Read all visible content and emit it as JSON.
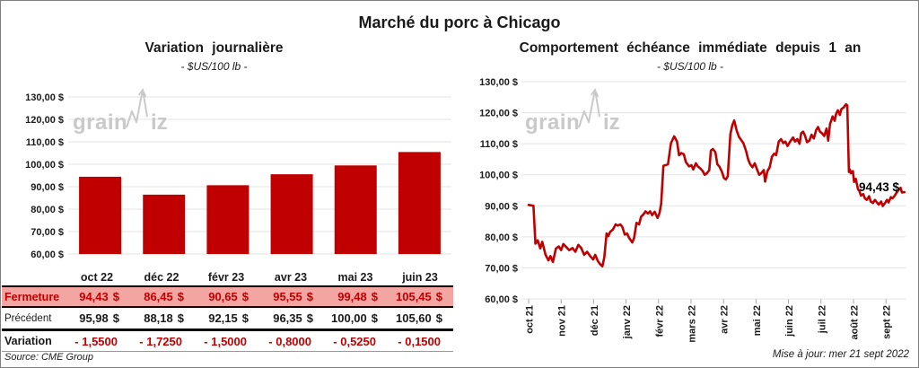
{
  "header": {
    "title": "Marché du porc à Chicago"
  },
  "watermark": {
    "left": "grain",
    "right": "iz"
  },
  "footer": {
    "source": "Source: CME Group",
    "updated": "Mise à jour: mer 21 sept 2022"
  },
  "colors": {
    "accent_red": "#C00000",
    "highlight_pink": "#F3A5A2",
    "gridline_gray": "#E3E3E3",
    "watermark_gray": "#C9C9C9"
  },
  "table": {
    "currency": "$",
    "rows": {
      "fermeture": {
        "label": "Fermeture",
        "values": [
          "94,43",
          "86,45",
          "90,65",
          "95,55",
          "99,48",
          "105,45"
        ]
      },
      "precedent": {
        "label": "Précédent",
        "values": [
          "95,98",
          "88,18",
          "92,15",
          "96,35",
          "100,00",
          "105,60"
        ]
      },
      "variation": {
        "label": "Variation",
        "values": [
          "- 1,5500",
          "- 1,7250",
          "- 1,5000",
          "- 0,8000",
          "- 0,5250",
          "- 0,1500"
        ]
      }
    }
  },
  "chart_data": [
    {
      "type": "bar",
      "title": "Variation journalière",
      "subtitle": "- $US/100 lb -",
      "categories": [
        "oct 22",
        "déc 22",
        "févr 23",
        "avr 23",
        "mai 23",
        "juin 23"
      ],
      "values": [
        94.43,
        86.45,
        90.65,
        95.55,
        99.48,
        105.45
      ],
      "ylim": [
        60,
        130
      ],
      "ytick_step": 10,
      "ytick_labels": [
        "130,00 $",
        "120,00 $",
        "110,00 $",
        "100,00 $",
        "90,00 $",
        "80,00 $",
        "70,00 $",
        "60,00 $"
      ],
      "grid": true,
      "legend": "none",
      "bar_color": "#C00000"
    },
    {
      "type": "line",
      "title": "Comportement échéance immédiate depuis 1 an",
      "subtitle": "- $US/100 lb -",
      "x_tick_labels": [
        "oct 21",
        "nov 21",
        "déc 21",
        "janv 22",
        "févr 22",
        "mars 22",
        "avr 22",
        "mai 22",
        "juin 22",
        "juil 22",
        "août 22",
        "sept 22"
      ],
      "ylim": [
        60,
        130
      ],
      "ytick_step": 10,
      "ytick_labels": [
        "130,00 $",
        "120,00 $",
        "110,00 $",
        "100,00 $",
        "90,00 $",
        "80,00 $",
        "70,00 $",
        "60,00 $"
      ],
      "grid": true,
      "legend": "none",
      "line_color": "#C00000",
      "last_value_label": "94,43 $",
      "last_value": 94.43,
      "points": [
        [
          0,
          90.3
        ],
        [
          0.15,
          90.0
        ],
        [
          0.21,
          77.8
        ],
        [
          0.28,
          78.9
        ],
        [
          0.36,
          76.3
        ],
        [
          0.42,
          78.4
        ],
        [
          0.52,
          74.3
        ],
        [
          0.61,
          72.4
        ],
        [
          0.67,
          73.8
        ],
        [
          0.75,
          71.9
        ],
        [
          0.84,
          76.2
        ],
        [
          0.93,
          76.9
        ],
        [
          1.0,
          75.7
        ],
        [
          1.07,
          77.7
        ],
        [
          1.16,
          76.7
        ],
        [
          1.25,
          75.7
        ],
        [
          1.35,
          76.4
        ],
        [
          1.44,
          75.2
        ],
        [
          1.53,
          77.4
        ],
        [
          1.62,
          76.4
        ],
        [
          1.71,
          74.2
        ],
        [
          1.8,
          75.2
        ],
        [
          1.9,
          73.7
        ],
        [
          1.99,
          72.7
        ],
        [
          2.05,
          74.2
        ],
        [
          2.13,
          72.2
        ],
        [
          2.2,
          71.2
        ],
        [
          2.27,
          70.5
        ],
        [
          2.33,
          73.3
        ],
        [
          2.4,
          81.1
        ],
        [
          2.45,
          80.2
        ],
        [
          2.51,
          81.6
        ],
        [
          2.59,
          82.3
        ],
        [
          2.68,
          84.0
        ],
        [
          2.75,
          83.6
        ],
        [
          2.82,
          84.0
        ],
        [
          2.88,
          83.3
        ],
        [
          2.96,
          80.7
        ],
        [
          3.03,
          81.1
        ],
        [
          3.09,
          79.7
        ],
        [
          3.19,
          78.2
        ],
        [
          3.25,
          79.7
        ],
        [
          3.32,
          84.5
        ],
        [
          3.4,
          84.0
        ],
        [
          3.46,
          86.5
        ],
        [
          3.53,
          87.2
        ],
        [
          3.6,
          88.2
        ],
        [
          3.67,
          87.5
        ],
        [
          3.74,
          88.2
        ],
        [
          3.8,
          87.0
        ],
        [
          3.88,
          88.1
        ],
        [
          3.97,
          86.1
        ],
        [
          4.03,
          87.7
        ],
        [
          4.08,
          90.7
        ],
        [
          4.15,
          102.9
        ],
        [
          4.29,
          103.4
        ],
        [
          4.38,
          110.2
        ],
        [
          4.48,
          112.4
        ],
        [
          4.57,
          110.7
        ],
        [
          4.63,
          106.3
        ],
        [
          4.7,
          107.0
        ],
        [
          4.78,
          106.6
        ],
        [
          4.84,
          104.1
        ],
        [
          4.94,
          102.7
        ],
        [
          5.01,
          103.1
        ],
        [
          5.07,
          101.7
        ],
        [
          5.15,
          103.7
        ],
        [
          5.21,
          102.7
        ],
        [
          5.28,
          102.1
        ],
        [
          5.36,
          101.2
        ],
        [
          5.42,
          100.0
        ],
        [
          5.49,
          100.5
        ],
        [
          5.56,
          101.5
        ],
        [
          5.61,
          107.8
        ],
        [
          5.67,
          108.3
        ],
        [
          5.75,
          107.3
        ],
        [
          5.81,
          103.4
        ],
        [
          5.87,
          102.7
        ],
        [
          5.95,
          101.0
        ],
        [
          6.01,
          99.0
        ],
        [
          6.07,
          98.5
        ],
        [
          6.13,
          99.5
        ],
        [
          6.21,
          113.0
        ],
        [
          6.27,
          116.0
        ],
        [
          6.33,
          117.5
        ],
        [
          6.41,
          114.1
        ],
        [
          6.48,
          112.1
        ],
        [
          6.55,
          111.1
        ],
        [
          6.61,
          110.2
        ],
        [
          6.69,
          107.8
        ],
        [
          6.76,
          104.9
        ],
        [
          6.82,
          103.4
        ],
        [
          6.89,
          102.4
        ],
        [
          6.96,
          103.7
        ],
        [
          7.04,
          101.5
        ],
        [
          7.1,
          100.0
        ],
        [
          7.16,
          100.5
        ],
        [
          7.24,
          101.5
        ],
        [
          7.28,
          97.8
        ],
        [
          7.35,
          101.2
        ],
        [
          7.42,
          102.4
        ],
        [
          7.49,
          105.8
        ],
        [
          7.56,
          106.8
        ],
        [
          7.62,
          106.3
        ],
        [
          7.7,
          110.7
        ],
        [
          7.77,
          111.5
        ],
        [
          7.84,
          110.2
        ],
        [
          7.9,
          110.7
        ],
        [
          7.97,
          109.3
        ],
        [
          8.02,
          110.2
        ],
        [
          8.07,
          111.0
        ],
        [
          8.14,
          112.0
        ],
        [
          8.2,
          110.7
        ],
        [
          8.27,
          111.5
        ],
        [
          8.34,
          110.0
        ],
        [
          8.39,
          113.4
        ],
        [
          8.45,
          113.9
        ],
        [
          8.51,
          112.5
        ],
        [
          8.57,
          110.5
        ],
        [
          8.64,
          111.0
        ],
        [
          8.71,
          112.9
        ],
        [
          8.78,
          111.7
        ],
        [
          8.85,
          114.4
        ],
        [
          8.91,
          115.4
        ],
        [
          8.97,
          113.9
        ],
        [
          9.03,
          113.4
        ],
        [
          9.1,
          112.5
        ],
        [
          9.17,
          114.9
        ],
        [
          9.22,
          111.0
        ],
        [
          9.28,
          116.4
        ],
        [
          9.36,
          118.8
        ],
        [
          9.42,
          117.4
        ],
        [
          9.47,
          119.8
        ],
        [
          9.52,
          120.8
        ],
        [
          9.58,
          119.3
        ],
        [
          9.63,
          121.2
        ],
        [
          9.7,
          121.7
        ],
        [
          9.77,
          122.7
        ],
        [
          9.81,
          122.3
        ],
        [
          9.86,
          100.9
        ],
        [
          9.89,
          101.7
        ],
        [
          9.92,
          100.5
        ],
        [
          9.98,
          101.2
        ],
        [
          10.02,
          97.7
        ],
        [
          10.07,
          98.7
        ],
        [
          10.14,
          95.3
        ],
        [
          10.18,
          94.8
        ],
        [
          10.23,
          93.3
        ],
        [
          10.3,
          93.8
        ],
        [
          10.35,
          92.4
        ],
        [
          10.41,
          91.9
        ],
        [
          10.48,
          93.1
        ],
        [
          10.53,
          91.4
        ],
        [
          10.6,
          90.9
        ],
        [
          10.66,
          91.9
        ],
        [
          10.72,
          91.1
        ],
        [
          10.78,
          90.4
        ],
        [
          10.85,
          91.4
        ],
        [
          10.9,
          89.9
        ],
        [
          10.97,
          90.9
        ],
        [
          11.03,
          91.9
        ],
        [
          11.08,
          91.1
        ],
        [
          11.15,
          92.8
        ],
        [
          11.2,
          92.4
        ],
        [
          11.27,
          93.3
        ],
        [
          11.33,
          94.3
        ],
        [
          11.38,
          95.0
        ],
        [
          11.45,
          95.8
        ],
        [
          11.49,
          94.3
        ],
        [
          11.57,
          94.43
        ]
      ]
    }
  ]
}
